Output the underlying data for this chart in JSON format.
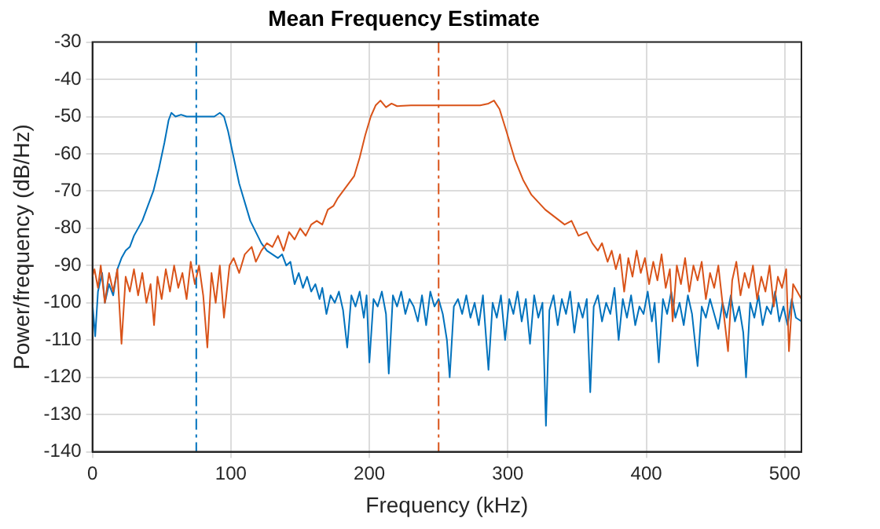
{
  "chart_data": {
    "type": "line",
    "title": "Mean Frequency Estimate",
    "xlabel": "Frequency (kHz)",
    "ylabel": "Power/frequency (dB/Hz)",
    "xlim": [
      0,
      512
    ],
    "xticks": [
      0,
      100,
      200,
      300,
      400,
      500
    ],
    "ylim": [
      -140,
      -30
    ],
    "yticks": [
      -140,
      -130,
      -120,
      -110,
      -100,
      -90,
      -80,
      -70,
      -60,
      -50,
      -40,
      -30
    ],
    "grid": true,
    "legend": false,
    "marker": "none",
    "line_style": "solid",
    "series": [
      {
        "color": "#0072bd",
        "x": [
          0,
          2,
          4,
          7,
          9,
          12,
          15,
          18,
          21,
          24,
          27,
          30,
          33,
          36,
          40,
          44,
          48,
          52,
          55,
          57,
          60,
          64,
          68,
          72,
          76,
          80,
          84,
          88,
          92,
          95,
          98,
          102,
          106,
          110,
          114,
          118,
          122,
          126,
          130,
          134,
          137,
          140,
          143,
          146,
          149,
          152,
          155,
          158,
          161,
          164,
          166,
          169,
          172,
          175,
          178,
          181,
          184,
          187,
          190,
          193,
          196,
          198,
          200,
          203,
          206,
          209,
          212,
          214,
          217,
          220,
          223,
          226,
          229,
          232,
          235,
          238,
          241,
          244,
          247,
          250,
          253,
          256,
          258,
          261,
          264,
          267,
          270,
          273,
          276,
          279,
          282,
          286,
          289,
          292,
          295,
          298,
          301,
          304,
          307,
          310,
          313,
          316,
          319,
          322,
          325,
          327.5,
          330,
          333,
          336,
          339,
          342,
          345,
          348,
          351,
          354,
          357,
          359.5,
          362,
          365,
          368,
          371,
          374,
          377,
          380,
          383,
          386,
          389,
          392,
          395,
          398,
          401,
          404,
          406,
          409,
          412,
          415,
          418,
          421,
          424,
          427,
          430,
          433,
          437,
          440,
          443,
          446,
          449,
          452,
          455,
          458,
          461,
          464,
          467,
          470,
          472,
          475,
          478,
          481,
          484,
          487,
          490,
          493,
          496,
          499,
          502,
          505,
          508,
          512
        ],
        "values": [
          -100,
          -109,
          -97,
          -92,
          -100,
          -95,
          -98,
          -91,
          -88,
          -86,
          -85,
          -82,
          -80,
          -78,
          -74,
          -70,
          -64,
          -57,
          -51,
          -49,
          -50,
          -49.5,
          -50,
          -50,
          -50,
          -50,
          -50,
          -50,
          -49,
          -50,
          -54,
          -61,
          -68,
          -73,
          -78,
          -81,
          -84,
          -86,
          -87,
          -88,
          -87,
          -90,
          -89,
          -95,
          -92,
          -96,
          -93,
          -97,
          -95,
          -99,
          -96,
          -103,
          -98,
          -100,
          -97,
          -102,
          -112,
          -98,
          -101,
          -97,
          -104,
          -98,
          -116,
          -99,
          -101,
          -97,
          -103,
          -119,
          -98,
          -101,
          -97,
          -103,
          -99,
          -101,
          -105,
          -98,
          -106,
          -97,
          -101,
          -99,
          -103,
          -110,
          -120,
          -101,
          -99,
          -103,
          -98,
          -104,
          -100,
          -106,
          -98,
          -118,
          -100,
          -104,
          -98,
          -110,
          -99,
          -103,
          -97,
          -105,
          -99,
          -111,
          -98,
          -104,
          -100,
          -133,
          -102,
          -98,
          -106,
          -99,
          -103,
          -97,
          -108,
          -100,
          -104,
          -99,
          -124,
          -101,
          -98,
          -105,
          -100,
          -103,
          -96,
          -110,
          -99,
          -104,
          -98,
          -106,
          -101,
          -103,
          -97,
          -105,
          -100,
          -116,
          -99,
          -103,
          -97,
          -104,
          -100,
          -106,
          -98,
          -103,
          -117,
          -101,
          -104,
          -99,
          -103,
          -107,
          -100,
          -104,
          -98,
          -105,
          -101,
          -108,
          -120,
          -100,
          -104,
          -98,
          -106,
          -101,
          -103,
          -97,
          -105,
          -101,
          -106,
          -99,
          -104,
          -105
        ]
      },
      {
        "color": "#d95319",
        "x": [
          0,
          1.5,
          4,
          6,
          9,
          12,
          15,
          18,
          21,
          24,
          27,
          30,
          33,
          36,
          39,
          42,
          44.5,
          47,
          50,
          53,
          56,
          59,
          62,
          65,
          68,
          71,
          74,
          77,
          80,
          83,
          86,
          89,
          92,
          95,
          99,
          102,
          106,
          110,
          115,
          118,
          122,
          126,
          130,
          134,
          138,
          142,
          146,
          150,
          154,
          158,
          162,
          166,
          170,
          174,
          177,
          181,
          185,
          189,
          193,
          197,
          201,
          204.5,
          208,
          212,
          216,
          220,
          230,
          240,
          250,
          260,
          270,
          280,
          286,
          290,
          294,
          299,
          305,
          311,
          317,
          322,
          327,
          334,
          341,
          346,
          351,
          357,
          361,
          365,
          368,
          372,
          375,
          378,
          381,
          384,
          387,
          390,
          393,
          396,
          399,
          402,
          405,
          408,
          411,
          414,
          417,
          419,
          422,
          425,
          428,
          431,
          434,
          437,
          440,
          443,
          446,
          449,
          452,
          455,
          459,
          462,
          465,
          468,
          471,
          474,
          477,
          480,
          483,
          486,
          489,
          492,
          495,
          498,
          501,
          503,
          506,
          509,
          512
        ],
        "values": [
          -93,
          -91,
          -96,
          -90,
          -100,
          -92,
          -97,
          -91,
          -111,
          -93,
          -97,
          -91,
          -98,
          -92,
          -100,
          -95,
          -106,
          -93,
          -99,
          -91,
          -97,
          -90,
          -96,
          -92,
          -99,
          -89,
          -95,
          -90,
          -98,
          -112,
          -92,
          -100,
          -90,
          -104,
          -90,
          -88,
          -92,
          -87,
          -85,
          -89,
          -86,
          -84,
          -85,
          -82,
          -86,
          -81,
          -83,
          -80,
          -82,
          -79,
          -78,
          -79,
          -75,
          -74,
          -72,
          -70,
          -68,
          -66,
          -61,
          -55,
          -50,
          -47,
          -45.7,
          -47.5,
          -46.5,
          -47.2,
          -47,
          -47,
          -47,
          -47,
          -47,
          -47,
          -46.5,
          -45.7,
          -48,
          -54,
          -61.5,
          -67,
          -71,
          -73,
          -75,
          -77,
          -79,
          -78,
          -82,
          -81,
          -84,
          -86,
          -84,
          -89,
          -86,
          -91,
          -87,
          -97,
          -88,
          -93,
          -86,
          -92,
          -88,
          -95,
          -89,
          -94,
          -87,
          -96,
          -91,
          -105,
          -90,
          -95,
          -88,
          -97,
          -90,
          -94,
          -89,
          -99,
          -92,
          -96,
          -90,
          -100,
          -113,
          -94,
          -89,
          -98,
          -92,
          -96,
          -90,
          -99,
          -93,
          -97,
          -90,
          -101,
          -93,
          -96,
          -91,
          -113,
          -95,
          -97,
          -99
        ]
      }
    ],
    "ref_lines": [
      {
        "axis": "x",
        "value": 75,
        "color": "#0072bd",
        "line_style": "dashed"
      },
      {
        "axis": "x",
        "value": 250,
        "color": "#d95319",
        "line_style": "dashed"
      }
    ]
  }
}
